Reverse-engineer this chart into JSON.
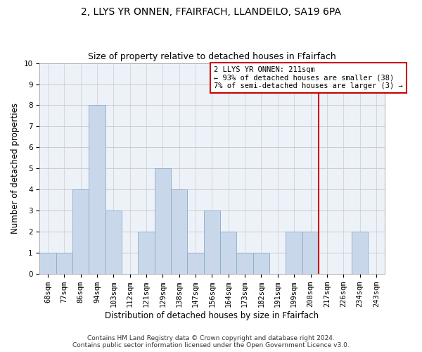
{
  "title": "2, LLYS YR ONNEN, FFAIRFACH, LLANDEILO, SA19 6PA",
  "subtitle": "Size of property relative to detached houses in Ffairfach",
  "xlabel": "Distribution of detached houses by size in Ffairfach",
  "ylabel": "Number of detached properties",
  "categories": [
    "68sqm",
    "77sqm",
    "86sqm",
    "94sqm",
    "103sqm",
    "112sqm",
    "121sqm",
    "129sqm",
    "138sqm",
    "147sqm",
    "156sqm",
    "164sqm",
    "173sqm",
    "182sqm",
    "191sqm",
    "199sqm",
    "208sqm",
    "217sqm",
    "226sqm",
    "234sqm",
    "243sqm"
  ],
  "values": [
    1,
    1,
    4,
    8,
    3,
    0,
    2,
    5,
    4,
    1,
    3,
    2,
    1,
    1,
    0,
    2,
    2,
    0,
    0,
    2,
    0
  ],
  "bar_color": "#c8d8ea",
  "bar_edgecolor": "#8baac8",
  "ylim": [
    0,
    10
  ],
  "yticks": [
    0,
    1,
    2,
    3,
    4,
    5,
    6,
    7,
    8,
    9,
    10
  ],
  "grid_color": "#cccccc",
  "bg_color": "#edf2f9",
  "annotation_text": "2 LLYS YR ONNEN: 211sqm\n← 93% of detached houses are smaller (38)\n7% of semi-detached houses are larger (3) →",
  "annotation_box_color": "#ffffff",
  "annotation_box_edgecolor": "#cc0000",
  "vline_color": "#cc0000",
  "vline_x_index": 16.5,
  "footer": "Contains HM Land Registry data © Crown copyright and database right 2024.\nContains public sector information licensed under the Open Government Licence v3.0.",
  "title_fontsize": 10,
  "subtitle_fontsize": 9,
  "ylabel_fontsize": 8.5,
  "xlabel_fontsize": 8.5,
  "tick_fontsize": 7.5,
  "annotation_fontsize": 7.5,
  "footer_fontsize": 6.5
}
